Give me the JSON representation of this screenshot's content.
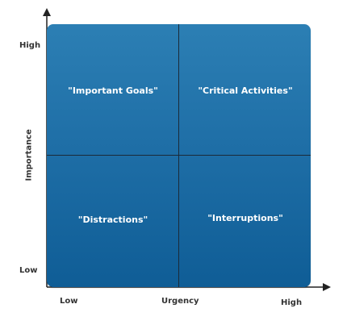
{
  "quadrants": {
    "top_left": "\"Important Goals\"",
    "top_right": "\"Critical Activities\"",
    "bottom_left": "\"Distractions\"",
    "bottom_right": "\"Interruptions\""
  },
  "y_axis": {
    "label": "Importance",
    "high": "High",
    "low": "Low"
  },
  "x_axis": {
    "label": "Urgency",
    "low": "Low",
    "high": "High"
  },
  "colors": {
    "quadrant_fill_top": "#2c7fb4",
    "quadrant_fill_bottom": "#0f5d96",
    "divider": "#1b2a38",
    "axis": "#222222",
    "label_text": "#ffffff"
  }
}
